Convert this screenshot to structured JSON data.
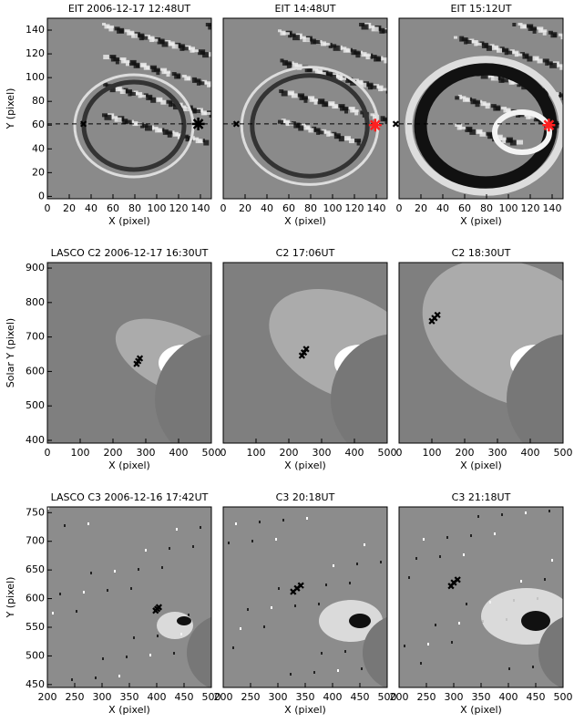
{
  "chart_data": [
    {
      "type": "image",
      "title": "EIT 2006-12-17 12:48UT",
      "xlabel": "X (pixel)",
      "ylabel": "Y (pixel)",
      "xlim": [
        0,
        150
      ],
      "ylim": [
        -2,
        150
      ],
      "xticks": [
        0,
        20,
        40,
        60,
        80,
        100,
        120,
        140
      ],
      "yticks": [
        0,
        20,
        40,
        60,
        80,
        100,
        120,
        140
      ],
      "guide": true,
      "points": [
        {
          "x": 33,
          "y": 61,
          "color": "#000000",
          "marker": "cross"
        },
        {
          "x": 138,
          "y": 61,
          "color": "#000000",
          "marker": "asterisk"
        }
      ]
    },
    {
      "type": "image",
      "title": "EIT 14:48UT",
      "xlabel": "X (pixel)",
      "xlim": [
        0,
        150
      ],
      "ylim": [
        -2,
        150
      ],
      "xticks": [
        0,
        20,
        40,
        60,
        80,
        100,
        120,
        140
      ],
      "guide": true,
      "points": [
        {
          "x": 12,
          "y": 61,
          "color": "#000000",
          "marker": "cross"
        },
        {
          "x": 139,
          "y": 60,
          "color": "#ff2020",
          "marker": "asterisk"
        }
      ]
    },
    {
      "type": "image",
      "title": "EIT 15:12UT",
      "xlabel": "X (pixel)",
      "xlim": [
        0,
        150
      ],
      "ylim": [
        -2,
        150
      ],
      "xticks": [
        0,
        20,
        40,
        60,
        80,
        100,
        120,
        140
      ],
      "guide": true,
      "points": [
        {
          "x": -3,
          "y": 61,
          "color": "#000000",
          "marker": "cross"
        },
        {
          "x": 137,
          "y": 60,
          "color": "#ff2020",
          "marker": "asterisk"
        }
      ]
    },
    {
      "type": "image",
      "title": "LASCO C2 2006-12-17 16:30UT",
      "xlabel": "X (pixel)",
      "ylabel": "Solar Y (pixel)",
      "xlim": [
        0,
        500
      ],
      "ylim": [
        392,
        916
      ],
      "xticks": [
        0,
        100,
        200,
        300,
        400,
        500
      ],
      "yticks": [
        400,
        500,
        600,
        700,
        800,
        900
      ],
      "points": [
        {
          "x": 272,
          "y": 622,
          "color": "#000000",
          "marker": "cross"
        },
        {
          "x": 277,
          "y": 630,
          "color": "#000000",
          "marker": "cross"
        },
        {
          "x": 282,
          "y": 638,
          "color": "#000000",
          "marker": "cross"
        }
      ]
    },
    {
      "type": "image",
      "title": "C2 17:06UT",
      "xlabel": "X (pixel)",
      "xlim": [
        0,
        500
      ],
      "ylim": [
        392,
        916
      ],
      "xticks": [
        0,
        100,
        200,
        300,
        400,
        500
      ],
      "points": [
        {
          "x": 240,
          "y": 646,
          "color": "#000000",
          "marker": "cross"
        },
        {
          "x": 246,
          "y": 655,
          "color": "#000000",
          "marker": "cross"
        },
        {
          "x": 253,
          "y": 665,
          "color": "#000000",
          "marker": "cross"
        }
      ]
    },
    {
      "type": "image",
      "title": "C2 18:30UT",
      "xlabel": "X (pixel)",
      "xlim": [
        0,
        500
      ],
      "ylim": [
        392,
        916
      ],
      "xticks": [
        0,
        100,
        200,
        300,
        400,
        500
      ],
      "points": [
        {
          "x": 100,
          "y": 746,
          "color": "#000000",
          "marker": "cross"
        },
        {
          "x": 108,
          "y": 755,
          "color": "#000000",
          "marker": "cross"
        },
        {
          "x": 117,
          "y": 764,
          "color": "#000000",
          "marker": "cross"
        }
      ]
    },
    {
      "type": "image",
      "title": "LASCO C3 2006-12-16 17:42UT",
      "xlabel": "X (pixel)",
      "ylabel": "Y (pixel)",
      "xlim": [
        200,
        500
      ],
      "ylim": [
        445,
        760
      ],
      "xticks": [
        200,
        250,
        300,
        350,
        400,
        450,
        500
      ],
      "yticks": [
        450,
        500,
        550,
        600,
        650,
        700,
        750
      ],
      "points": [
        {
          "x": 398,
          "y": 579,
          "color": "#000000",
          "marker": "cross"
        },
        {
          "x": 401,
          "y": 582,
          "color": "#000000",
          "marker": "cross"
        },
        {
          "x": 404,
          "y": 585,
          "color": "#000000",
          "marker": "cross"
        }
      ]
    },
    {
      "type": "image",
      "title": "C3 20:18UT",
      "xlabel": "X (pixel)",
      "xlim": [
        200,
        500
      ],
      "ylim": [
        445,
        760
      ],
      "xticks": [
        200,
        250,
        300,
        350,
        400,
        450,
        500
      ],
      "points": [
        {
          "x": 328,
          "y": 612,
          "color": "#000000",
          "marker": "cross"
        },
        {
          "x": 335,
          "y": 618,
          "color": "#000000",
          "marker": "cross"
        },
        {
          "x": 342,
          "y": 623,
          "color": "#000000",
          "marker": "cross"
        }
      ]
    },
    {
      "type": "image",
      "title": "C3 21:18UT",
      "xlabel": "X (pixel)",
      "xlim": [
        200,
        500
      ],
      "ylim": [
        445,
        760
      ],
      "xticks": [
        200,
        250,
        300,
        350,
        400,
        450,
        500
      ],
      "points": [
        {
          "x": 295,
          "y": 622,
          "color": "#000000",
          "marker": "cross"
        },
        {
          "x": 300,
          "y": 628,
          "color": "#000000",
          "marker": "cross"
        },
        {
          "x": 307,
          "y": 633,
          "color": "#000000",
          "marker": "cross"
        }
      ]
    }
  ]
}
